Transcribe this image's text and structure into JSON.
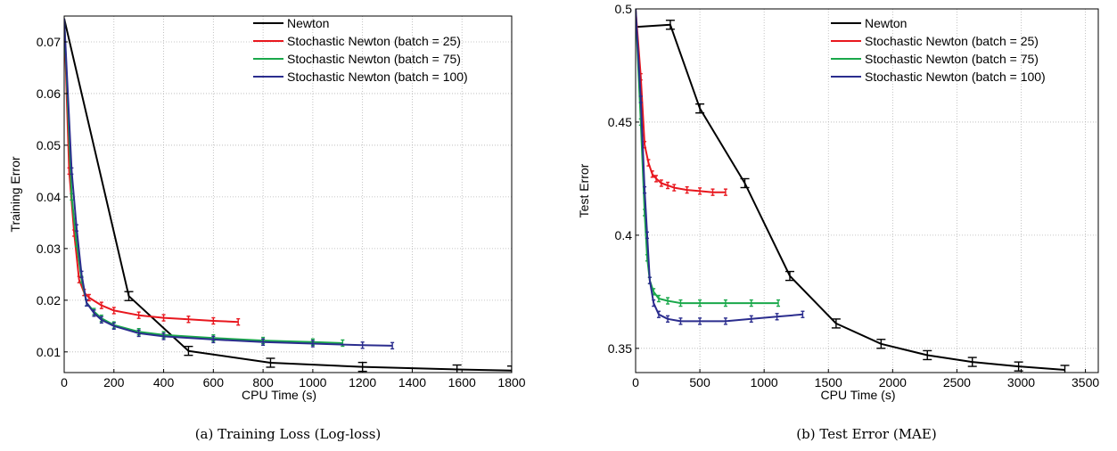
{
  "chart_data": [
    {
      "type": "line",
      "caption": "(a) Training Loss (Log-loss)",
      "xlabel": "CPU Time (s)",
      "ylabel": "Training Error",
      "xlim": [
        0,
        1800
      ],
      "ylim": [
        0.006,
        0.075
      ],
      "xticks": [
        0,
        200,
        400,
        600,
        800,
        1000,
        1200,
        1400,
        1600,
        1800
      ],
      "yticks": [
        0.01,
        0.02,
        0.03,
        0.04,
        0.05,
        0.06,
        0.07
      ],
      "grid": true,
      "legend_position": "top-right",
      "series": [
        {
          "name": "Newton",
          "color": "#000000",
          "x": [
            0,
            260,
            500,
            830,
            1200,
            1580,
            1800
          ],
          "y": [
            0.0745,
            0.0208,
            0.0102,
            0.0079,
            0.0071,
            0.0066,
            0.0064
          ]
        },
        {
          "name": "Stochastic Newton (batch = 25)",
          "color": "#e8171e",
          "x": [
            0,
            20,
            40,
            60,
            80,
            100,
            150,
            200,
            300,
            400,
            500,
            600,
            700
          ],
          "y": [
            0.0745,
            0.045,
            0.033,
            0.024,
            0.0215,
            0.0205,
            0.019,
            0.018,
            0.0171,
            0.0166,
            0.0163,
            0.016,
            0.0158
          ]
        },
        {
          "name": "Stochastic Newton (batch = 75)",
          "color": "#1aa84b",
          "x": [
            0,
            30,
            50,
            70,
            90,
            120,
            150,
            200,
            300,
            400,
            600,
            800,
            1000,
            1120
          ],
          "y": [
            0.0745,
            0.04,
            0.031,
            0.024,
            0.0195,
            0.0178,
            0.0165,
            0.0152,
            0.0139,
            0.0133,
            0.0127,
            0.0122,
            0.0119,
            0.0117
          ]
        },
        {
          "name": "Stochastic Newton (batch = 100)",
          "color": "#2b2d8e",
          "x": [
            0,
            30,
            50,
            70,
            90,
            120,
            150,
            200,
            300,
            400,
            600,
            800,
            1000,
            1200,
            1320
          ],
          "y": [
            0.0745,
            0.045,
            0.034,
            0.025,
            0.0195,
            0.0175,
            0.0162,
            0.015,
            0.0136,
            0.013,
            0.0124,
            0.0119,
            0.0116,
            0.0113,
            0.0112
          ]
        }
      ]
    },
    {
      "type": "line",
      "caption": "(b) Test Error (MAE)",
      "xlabel": "CPU Time (s)",
      "ylabel": "Test Error",
      "xlim": [
        0,
        3600
      ],
      "ylim": [
        0.3393,
        0.5
      ],
      "xticks": [
        0,
        500,
        1000,
        1500,
        2000,
        2500,
        3000,
        3500
      ],
      "yticks": [
        0.35,
        0.4,
        0.45,
        0.5
      ],
      "grid": true,
      "legend_position": "top-right",
      "series": [
        {
          "name": "Newton",
          "color": "#000000",
          "x": [
            0,
            270,
            500,
            850,
            1200,
            1560,
            1910,
            2270,
            2620,
            2980,
            3340
          ],
          "y": [
            0.492,
            0.493,
            0.456,
            0.423,
            0.382,
            0.361,
            0.352,
            0.347,
            0.344,
            0.342,
            0.3405
          ]
        },
        {
          "name": "Stochastic Newton (batch = 25)",
          "color": "#e8171e",
          "x": [
            0,
            40,
            70,
            100,
            130,
            160,
            200,
            250,
            300,
            400,
            500,
            600,
            700
          ],
          "y": [
            0.5,
            0.47,
            0.44,
            0.432,
            0.427,
            0.425,
            0.423,
            0.422,
            0.421,
            0.42,
            0.4195,
            0.419,
            0.419
          ]
        },
        {
          "name": "Stochastic Newton (batch = 75)",
          "color": "#1aa84b",
          "x": [
            0,
            40,
            70,
            90,
            110,
            140,
            180,
            250,
            350,
            500,
            700,
            900,
            1110
          ],
          "y": [
            0.5,
            0.45,
            0.41,
            0.39,
            0.38,
            0.375,
            0.372,
            0.371,
            0.37,
            0.37,
            0.37,
            0.37,
            0.37
          ]
        },
        {
          "name": "Stochastic Newton (batch = 100)",
          "color": "#2b2d8e",
          "x": [
            0,
            40,
            70,
            90,
            110,
            140,
            180,
            250,
            350,
            500,
            700,
            900,
            1100,
            1300
          ],
          "y": [
            0.5,
            0.46,
            0.42,
            0.4,
            0.38,
            0.37,
            0.365,
            0.363,
            0.362,
            0.362,
            0.362,
            0.363,
            0.364,
            0.365
          ]
        }
      ]
    }
  ]
}
